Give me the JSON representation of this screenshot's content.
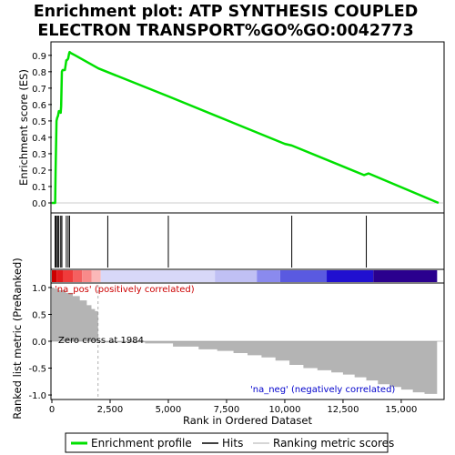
{
  "chart_data": {
    "type": "line",
    "title_line1": "Enrichment plot: ATP SYNTHESIS COUPLED",
    "title_line2": "ELECTRON TRANSPORT%GO%GO:0042773",
    "top_panel": {
      "ylabel": "Enrichment score (ES)",
      "ylim": [
        -0.05,
        0.96
      ],
      "yticks": [
        "0.0",
        "0.1",
        "0.2",
        "0.3",
        "0.4",
        "0.5",
        "0.6",
        "0.7",
        "0.8",
        "0.9"
      ],
      "series": [
        {
          "x": [
            0,
            140,
            160,
            200,
            230,
            260,
            300,
            340,
            380,
            400,
            430,
            460,
            500,
            560,
            620,
            650,
            700,
            740,
            760,
            800,
            1000,
            2000,
            5000,
            10000,
            10300,
            13400,
            13600,
            16600
          ],
          "y": [
            0.0,
            0.0,
            0.2,
            0.5,
            0.52,
            0.53,
            0.56,
            0.56,
            0.55,
            0.59,
            0.8,
            0.81,
            0.81,
            0.81,
            0.87,
            0.87,
            0.88,
            0.91,
            0.92,
            0.915,
            0.9,
            0.82,
            0.65,
            0.36,
            0.35,
            0.17,
            0.18,
            0.0
          ]
        }
      ]
    },
    "hits": [
      140,
      160,
      200,
      260,
      300,
      380,
      430,
      620,
      700,
      760,
      2400,
      5000,
      10300,
      13500
    ],
    "ranked_metric": {
      "ylabel": "Ranked list metric (PreRanked)",
      "ylim": [
        -1.05,
        1.05
      ],
      "yticks": [
        "1.0",
        "0.5",
        "0.0",
        "-0.5",
        "-1.0"
      ],
      "x": [
        0,
        100,
        300,
        600,
        900,
        1200,
        1500,
        1700,
        1850,
        1984,
        2300,
        4000,
        5200,
        6300,
        7100,
        7800,
        8400,
        9000,
        9600,
        10200,
        10800,
        11400,
        12000,
        12500,
        13000,
        13500,
        14000,
        14500,
        15000,
        15500,
        16000,
        16540
      ],
      "y": [
        1.0,
        0.98,
        0.95,
        0.9,
        0.84,
        0.76,
        0.67,
        0.6,
        0.56,
        0.0,
        -0.02,
        -0.04,
        -0.1,
        -0.15,
        -0.18,
        -0.22,
        -0.26,
        -0.3,
        -0.36,
        -0.44,
        -0.5,
        -0.54,
        -0.58,
        -0.62,
        -0.67,
        -0.73,
        -0.8,
        -0.85,
        -0.9,
        -0.95,
        -0.98,
        -1.0
      ],
      "zero_cross_label": "Zero cross at 1984",
      "pos_label": "'na_pos' (positively correlated)",
      "neg_label": "'na_neg' (negatively correlated)"
    },
    "xaxis": {
      "label": "Rank in Ordered Dataset",
      "xlim": [
        0,
        16800
      ],
      "ticks": [
        0,
        2500,
        5000,
        7500,
        10000,
        12500,
        15000
      ],
      "tick_labels": [
        "0",
        "2,500",
        "5,000",
        "7,500",
        "10,000",
        "12,500",
        "15,000"
      ]
    },
    "zero_cross": 1984,
    "heatmap_bands": [
      {
        "from": 0,
        "to": 200,
        "color": "#cc0000"
      },
      {
        "from": 200,
        "to": 500,
        "color": "#e31a1c"
      },
      {
        "from": 500,
        "to": 900,
        "color": "#f03b3b"
      },
      {
        "from": 900,
        "to": 1300,
        "color": "#f46060"
      },
      {
        "from": 1300,
        "to": 1700,
        "color": "#f88a8a"
      },
      {
        "from": 1700,
        "to": 2100,
        "color": "#fbb8b8"
      },
      {
        "from": 2100,
        "to": 7000,
        "color": "#d8d8f8"
      },
      {
        "from": 7000,
        "to": 8800,
        "color": "#c0c0f4"
      },
      {
        "from": 8800,
        "to": 9800,
        "color": "#8a8aee"
      },
      {
        "from": 9800,
        "to": 11800,
        "color": "#5a5ae0"
      },
      {
        "from": 11800,
        "to": 13800,
        "color": "#2010d0"
      },
      {
        "from": 13800,
        "to": 16540,
        "color": "#2a008e"
      }
    ],
    "legend": {
      "entries": [
        "Enrichment profile",
        "Hits",
        "Ranking metric scores"
      ],
      "colors": [
        "#00e000",
        "#000000",
        "#c8c8c8"
      ]
    },
    "colors": {
      "es_line": "#00e000",
      "metric_fill": "#b4b4b4",
      "pos_text": "#cc0000",
      "neg_text": "#0000cc"
    }
  }
}
